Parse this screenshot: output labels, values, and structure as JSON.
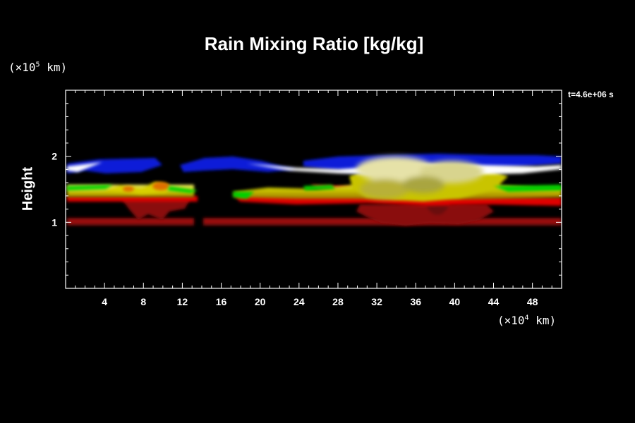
{
  "chart_data": {
    "type": "heatmap",
    "title": "Rain Mixing Ratio [kg/kg]",
    "ylabel": "Height",
    "y_unit_label": "(×10^5 km)",
    "x_unit_label": "(×10^4 km)",
    "time_label": "t=4.6e+06 s",
    "xlim": [
      0,
      51
    ],
    "ylim": [
      0,
      3
    ],
    "x_ticks": [
      4,
      8,
      12,
      16,
      20,
      24,
      28,
      32,
      36,
      40,
      44,
      48
    ],
    "y_ticks": [
      1,
      2
    ],
    "colors": {
      "background": "#000000",
      "low": "#8b0000",
      "red": "#e00000",
      "yellow": "#d4d000",
      "green": "#00d000",
      "blue": "#0020e0",
      "white": "#ffffff"
    }
  }
}
